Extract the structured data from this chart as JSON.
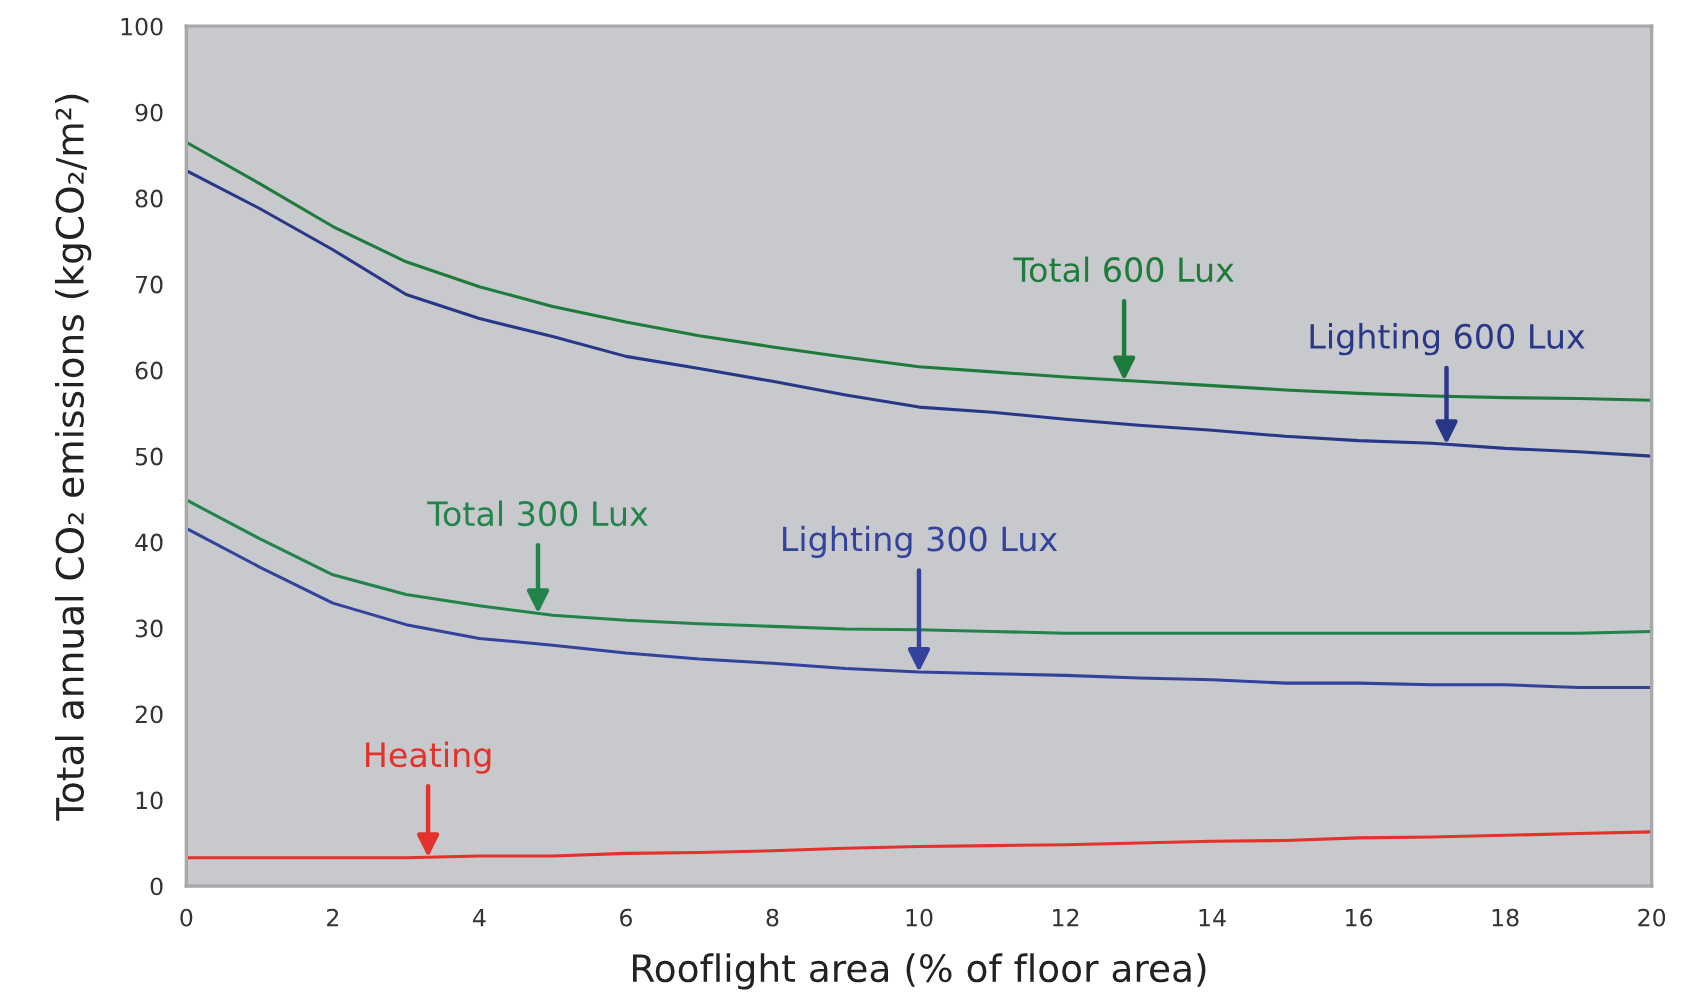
{
  "chart_data": {
    "type": "line",
    "xlabel": "Rooflight area (% of floor area)",
    "ylabel": "Total annual CO₂ emissions (kgCO₂/m²)",
    "x": [
      0,
      1,
      2,
      3,
      4,
      5,
      6,
      7,
      8,
      9,
      10,
      11,
      12,
      13,
      14,
      15,
      16,
      17,
      18,
      19,
      20
    ],
    "series": [
      {
        "name": "Total 600 Lux",
        "color": "#1e7b3c",
        "values": [
          86.5,
          81.7,
          76.7,
          72.6,
          69.7,
          67.4,
          65.6,
          64.0,
          62.7,
          61.5,
          60.4,
          59.8,
          59.2,
          58.7,
          58.2,
          57.7,
          57.3,
          57.0,
          56.8,
          56.7,
          56.5
        ]
      },
      {
        "name": "Lighting 600 Lux",
        "color": "#283788",
        "values": [
          83.2,
          78.8,
          74.0,
          68.8,
          66.0,
          63.9,
          61.6,
          60.2,
          58.7,
          57.1,
          55.7,
          55.1,
          54.3,
          53.6,
          53.0,
          52.3,
          51.8,
          51.5,
          50.9,
          50.5,
          50.0
        ]
      },
      {
        "name": "Total 300 Lux",
        "color": "#23834a",
        "values": [
          44.9,
          40.4,
          36.2,
          33.9,
          32.6,
          31.5,
          30.9,
          30.5,
          30.2,
          29.9,
          29.8,
          29.6,
          29.4,
          29.4,
          29.4,
          29.4,
          29.4,
          29.4,
          29.4,
          29.4,
          29.6
        ]
      },
      {
        "name": "Lighting 300 Lux",
        "color": "#33439c",
        "values": [
          41.6,
          37.1,
          32.9,
          30.4,
          28.8,
          28.0,
          27.1,
          26.4,
          25.9,
          25.3,
          24.9,
          24.7,
          24.5,
          24.2,
          24.0,
          23.6,
          23.6,
          23.4,
          23.4,
          23.1,
          23.1
        ]
      },
      {
        "name": "Heating",
        "color": "#e2322b",
        "values": [
          3.3,
          3.3,
          3.3,
          3.3,
          3.5,
          3.5,
          3.8,
          3.9,
          4.1,
          4.4,
          4.6,
          4.7,
          4.8,
          5.0,
          5.2,
          5.3,
          5.6,
          5.7,
          5.9,
          6.1,
          6.3
        ]
      }
    ],
    "xlim": [
      0,
      20
    ],
    "ylim": [
      0,
      100
    ],
    "xticks": [
      0,
      2,
      4,
      6,
      8,
      10,
      12,
      14,
      16,
      18,
      20
    ],
    "yticks": [
      0,
      10,
      20,
      30,
      40,
      50,
      60,
      70,
      80,
      90,
      100
    ]
  }
}
